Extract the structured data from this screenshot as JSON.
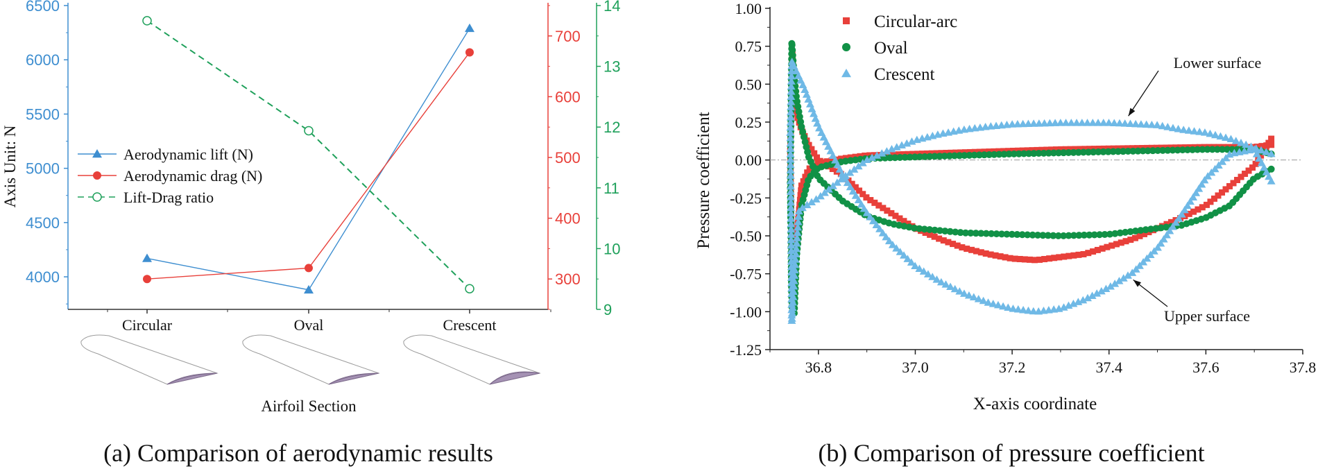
{
  "colors": {
    "lift": "#3e8ed0",
    "drag": "#e8403a",
    "ratio": "#1ea05a",
    "circular": "#e8403a",
    "oval": "#119146",
    "crescent": "#6fb9e6",
    "airfoil_fill": "#a592b4"
  },
  "chart_data": [
    {
      "type": "line",
      "categories": [
        "Circular",
        "Oval",
        "Crescent"
      ],
      "xlabel": "Airfoil Section",
      "caption": "(a) Comparison of aerodynamic results",
      "axes": {
        "left": {
          "label": "Axis Unit: N",
          "range": [
            3700,
            6500
          ],
          "ticks": [
            4000,
            4500,
            5000,
            5500,
            6000,
            6500
          ],
          "color_key": "lift"
        },
        "right1": {
          "label": "",
          "range": [
            250,
            750
          ],
          "ticks": [
            300,
            400,
            500,
            600,
            700
          ],
          "color_key": "drag"
        },
        "right2": {
          "label": "",
          "range": [
            9,
            14
          ],
          "ticks": [
            9,
            10,
            11,
            12,
            13,
            14
          ],
          "color_key": "ratio"
        }
      },
      "legend_position": "middle-left",
      "series": [
        {
          "name": "Aerodynamic lift (N)",
          "axis": "left",
          "values": [
            4170,
            3880,
            6290
          ],
          "marker": "triangle",
          "style": "solid",
          "color_key": "lift"
        },
        {
          "name": "Aerodynamic drag (N)",
          "axis": "right1",
          "values": [
            300,
            318,
            673
          ],
          "marker": "circle",
          "style": "solid",
          "color_key": "drag"
        },
        {
          "name": "Lift-Drag ratio",
          "axis": "right2",
          "values": [
            13.75,
            11.94,
            9.34
          ],
          "marker": "open-circle",
          "style": "dashed",
          "color_key": "ratio"
        }
      ]
    },
    {
      "type": "scatter",
      "xlabel": "X-axis coordinate",
      "ylabel": "Pressure coefficient",
      "caption": "(b) Comparison of pressure coefficient",
      "xlim": [
        36.7,
        37.8
      ],
      "ylim": [
        -1.25,
        1.0
      ],
      "xticks": [
        "36.8",
        "37.0",
        "37.2",
        "37.4",
        "37.6",
        "37.8"
      ],
      "yticks": [
        "1.00",
        "0.75",
        "0.50",
        "0.25",
        "0.00",
        "-0.25",
        "-0.50",
        "-0.75",
        "-1.00",
        "-1.25"
      ],
      "legend_position": "top-left",
      "annotations": [
        {
          "text": "Lower surface",
          "arrow_to": [
            37.44,
            0.29
          ]
        },
        {
          "text": "Upper surface",
          "arrow_to": [
            37.45,
            -0.79
          ]
        }
      ],
      "series": [
        {
          "name": "Circular-arc",
          "marker": "square",
          "color_key": "circular",
          "upper": [
            [
              36.742,
              0.06
            ],
            [
              36.746,
              0.72
            ],
            [
              36.75,
              0.42
            ],
            [
              36.755,
              0.3
            ],
            [
              36.765,
              0.2
            ],
            [
              36.78,
              0.1
            ],
            [
              36.8,
              0.0
            ],
            [
              36.85,
              -0.1
            ],
            [
              36.9,
              -0.25
            ],
            [
              36.95,
              -0.35
            ],
            [
              37.0,
              -0.45
            ],
            [
              37.05,
              -0.52
            ],
            [
              37.1,
              -0.58
            ],
            [
              37.15,
              -0.62
            ],
            [
              37.2,
              -0.65
            ],
            [
              37.25,
              -0.66
            ],
            [
              37.3,
              -0.64
            ],
            [
              37.35,
              -0.62
            ],
            [
              37.4,
              -0.57
            ],
            [
              37.45,
              -0.52
            ],
            [
              37.5,
              -0.45
            ],
            [
              37.55,
              -0.38
            ],
            [
              37.6,
              -0.3
            ],
            [
              37.65,
              -0.17
            ],
            [
              37.7,
              -0.04
            ],
            [
              37.735,
              0.14
            ]
          ],
          "lower": [
            [
              36.742,
              0.06
            ],
            [
              36.745,
              -0.7
            ],
            [
              36.75,
              -0.81
            ],
            [
              36.755,
              -0.5
            ],
            [
              36.765,
              -0.17
            ],
            [
              36.78,
              -0.06
            ],
            [
              36.8,
              -0.02
            ],
            [
              36.85,
              0.01
            ],
            [
              36.9,
              0.03
            ],
            [
              37.0,
              0.04
            ],
            [
              37.1,
              0.05
            ],
            [
              37.2,
              0.06
            ],
            [
              37.3,
              0.07
            ],
            [
              37.4,
              0.075
            ],
            [
              37.5,
              0.08
            ],
            [
              37.6,
              0.085
            ],
            [
              37.7,
              0.085
            ],
            [
              37.735,
              0.1
            ]
          ]
        },
        {
          "name": "Oval",
          "marker": "circle",
          "color_key": "oval",
          "upper": [
            [
              36.742,
              -0.15
            ],
            [
              36.745,
              0.78
            ],
            [
              36.75,
              0.55
            ],
            [
              36.755,
              0.4
            ],
            [
              36.765,
              0.22
            ],
            [
              36.78,
              0.02
            ],
            [
              36.8,
              -0.12
            ],
            [
              36.85,
              -0.27
            ],
            [
              36.9,
              -0.37
            ],
            [
              36.95,
              -0.42
            ],
            [
              37.0,
              -0.45
            ],
            [
              37.1,
              -0.48
            ],
            [
              37.2,
              -0.49
            ],
            [
              37.3,
              -0.5
            ],
            [
              37.4,
              -0.49
            ],
            [
              37.5,
              -0.45
            ],
            [
              37.55,
              -0.43
            ],
            [
              37.6,
              -0.38
            ],
            [
              37.65,
              -0.3
            ],
            [
              37.7,
              -0.12
            ],
            [
              37.735,
              -0.06
            ]
          ],
          "lower": [
            [
              36.742,
              -0.15
            ],
            [
              36.745,
              -0.97
            ],
            [
              36.75,
              -1.02
            ],
            [
              36.755,
              -0.63
            ],
            [
              36.765,
              -0.3
            ],
            [
              36.78,
              -0.12
            ],
            [
              36.8,
              -0.05
            ],
            [
              36.85,
              -0.01
            ],
            [
              36.9,
              0.01
            ],
            [
              37.0,
              0.02
            ],
            [
              37.2,
              0.04
            ],
            [
              37.4,
              0.055
            ],
            [
              37.6,
              0.07
            ],
            [
              37.7,
              0.07
            ],
            [
              37.735,
              0.04
            ]
          ]
        },
        {
          "name": "Crescent",
          "marker": "triangle",
          "color_key": "crescent",
          "upper": [
            [
              36.742,
              0.18
            ],
            [
              36.745,
              0.65
            ],
            [
              36.755,
              0.58
            ],
            [
              36.77,
              0.48
            ],
            [
              36.8,
              0.22
            ],
            [
              36.85,
              -0.1
            ],
            [
              36.9,
              -0.35
            ],
            [
              36.95,
              -0.55
            ],
            [
              37.0,
              -0.7
            ],
            [
              37.05,
              -0.8
            ],
            [
              37.1,
              -0.88
            ],
            [
              37.15,
              -0.94
            ],
            [
              37.2,
              -0.98
            ],
            [
              37.25,
              -1.0
            ],
            [
              37.3,
              -0.98
            ],
            [
              37.35,
              -0.92
            ],
            [
              37.4,
              -0.84
            ],
            [
              37.45,
              -0.74
            ],
            [
              37.5,
              -0.58
            ],
            [
              37.55,
              -0.36
            ],
            [
              37.6,
              -0.12
            ],
            [
              37.65,
              0.04
            ],
            [
              37.7,
              0.07
            ],
            [
              37.735,
              -0.14
            ]
          ],
          "lower": [
            [
              36.742,
              0.18
            ],
            [
              36.745,
              -1.07
            ],
            [
              36.75,
              -0.78
            ],
            [
              36.76,
              -0.33
            ],
            [
              36.8,
              -0.25
            ],
            [
              36.85,
              -0.12
            ],
            [
              36.9,
              0.0
            ],
            [
              36.95,
              0.07
            ],
            [
              37.0,
              0.13
            ],
            [
              37.05,
              0.17
            ],
            [
              37.1,
              0.2
            ],
            [
              37.15,
              0.22
            ],
            [
              37.2,
              0.235
            ],
            [
              37.3,
              0.245
            ],
            [
              37.4,
              0.245
            ],
            [
              37.5,
              0.23
            ],
            [
              37.55,
              0.2
            ],
            [
              37.6,
              0.18
            ],
            [
              37.65,
              0.14
            ],
            [
              37.7,
              0.08
            ],
            [
              37.735,
              0.04
            ]
          ]
        }
      ]
    }
  ]
}
